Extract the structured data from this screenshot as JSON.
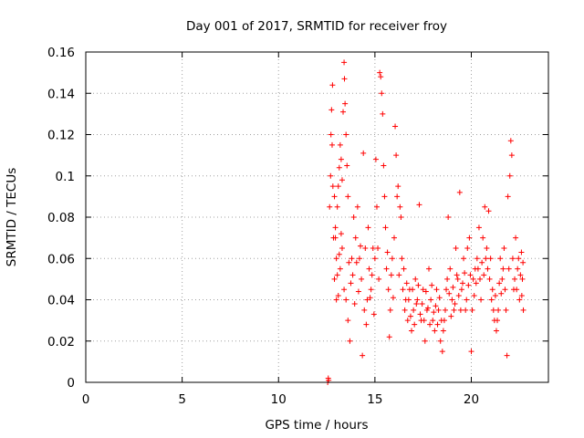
{
  "chart_data": {
    "type": "scatter",
    "title": "Day 001 of 2017, SRMTID for receiver froy",
    "xlabel": "GPS time / hours",
    "ylabel": "SRMTID / TECUs",
    "xlim": [
      0,
      24
    ],
    "ylim": [
      0,
      0.16
    ],
    "xticks": [
      0,
      5,
      10,
      15,
      20
    ],
    "xtick_labels": [
      "0",
      "5",
      "10",
      "15",
      "20"
    ],
    "yticks": [
      0,
      0.02,
      0.04,
      0.06,
      0.08,
      0.1,
      0.12,
      0.14,
      0.16
    ],
    "ytick_labels": [
      "0",
      "0.02",
      "0.04",
      "0.06",
      "0.08",
      "0.1",
      "0.12",
      "0.14",
      "0.16"
    ],
    "grid": true,
    "marker": "+",
    "color": "#ff0000",
    "series": [
      {
        "name": "froy",
        "points": [
          [
            12.55,
            0.0
          ],
          [
            12.6,
            0.001
          ],
          [
            12.58,
            0.002
          ],
          [
            12.65,
            0.085
          ],
          [
            12.7,
            0.1
          ],
          [
            12.72,
            0.12
          ],
          [
            12.75,
            0.132
          ],
          [
            12.8,
            0.144
          ],
          [
            12.78,
            0.115
          ],
          [
            12.82,
            0.095
          ],
          [
            12.85,
            0.07
          ],
          [
            12.9,
            0.09
          ],
          [
            12.95,
            0.075
          ],
          [
            13.0,
            0.06
          ],
          [
            12.9,
            0.05
          ],
          [
            13.05,
            0.085
          ],
          [
            13.1,
            0.095
          ],
          [
            13.15,
            0.104
          ],
          [
            13.2,
            0.115
          ],
          [
            13.25,
            0.108
          ],
          [
            13.3,
            0.098
          ],
          [
            13.35,
            0.131
          ],
          [
            13.4,
            0.155
          ],
          [
            13.42,
            0.147
          ],
          [
            13.45,
            0.135
          ],
          [
            13.5,
            0.12
          ],
          [
            13.55,
            0.105
          ],
          [
            13.6,
            0.09
          ],
          [
            13.3,
            0.065
          ],
          [
            13.4,
            0.045
          ],
          [
            13.5,
            0.04
          ],
          [
            13.6,
            0.03
          ],
          [
            13.7,
            0.02
          ],
          [
            13.2,
            0.055
          ],
          [
            13.0,
            0.04
          ],
          [
            13.1,
            0.042
          ],
          [
            13.8,
            0.06
          ],
          [
            13.9,
            0.08
          ],
          [
            14.0,
            0.07
          ],
          [
            14.1,
            0.085
          ],
          [
            14.2,
            0.06
          ],
          [
            14.3,
            0.05
          ],
          [
            14.4,
            0.111
          ],
          [
            14.5,
            0.065
          ],
          [
            14.6,
            0.04
          ],
          [
            14.7,
            0.055
          ],
          [
            14.8,
            0.045
          ],
          [
            14.9,
            0.065
          ],
          [
            14.35,
            0.013
          ],
          [
            14.45,
            0.035
          ],
          [
            14.55,
            0.028
          ],
          [
            14.65,
            0.075
          ],
          [
            15.0,
            0.06
          ],
          [
            15.05,
            0.108
          ],
          [
            15.1,
            0.085
          ],
          [
            15.15,
            0.065
          ],
          [
            15.2,
            0.05
          ],
          [
            15.25,
            0.15
          ],
          [
            15.3,
            0.148
          ],
          [
            15.35,
            0.14
          ],
          [
            15.4,
            0.13
          ],
          [
            15.45,
            0.105
          ],
          [
            15.5,
            0.09
          ],
          [
            15.55,
            0.075
          ],
          [
            15.6,
            0.055
          ],
          [
            15.7,
            0.045
          ],
          [
            15.8,
            0.035
          ],
          [
            15.75,
            0.022
          ],
          [
            15.9,
            0.06
          ],
          [
            16.0,
            0.07
          ],
          [
            16.05,
            0.124
          ],
          [
            16.1,
            0.11
          ],
          [
            16.15,
            0.09
          ],
          [
            16.2,
            0.095
          ],
          [
            16.3,
            0.085
          ],
          [
            16.35,
            0.08
          ],
          [
            16.4,
            0.06
          ],
          [
            16.45,
            0.045
          ],
          [
            16.5,
            0.055
          ],
          [
            16.6,
            0.04
          ],
          [
            16.7,
            0.03
          ],
          [
            16.8,
            0.045
          ],
          [
            16.9,
            0.025
          ],
          [
            17.0,
            0.035
          ],
          [
            17.1,
            0.05
          ],
          [
            17.2,
            0.04
          ],
          [
            17.3,
            0.086
          ],
          [
            17.4,
            0.03
          ],
          [
            17.5,
            0.045
          ],
          [
            17.6,
            0.02
          ],
          [
            17.7,
            0.035
          ],
          [
            17.8,
            0.055
          ],
          [
            17.9,
            0.04
          ],
          [
            18.0,
            0.03
          ],
          [
            18.1,
            0.025
          ],
          [
            18.2,
            0.045
          ],
          [
            18.3,
            0.035
          ],
          [
            18.4,
            0.02
          ],
          [
            18.5,
            0.015
          ],
          [
            18.6,
            0.03
          ],
          [
            18.7,
            0.045
          ],
          [
            18.8,
            0.08
          ],
          [
            18.9,
            0.055
          ],
          [
            19.0,
            0.04
          ],
          [
            19.1,
            0.035
          ],
          [
            19.2,
            0.065
          ],
          [
            19.3,
            0.05
          ],
          [
            19.4,
            0.092
          ],
          [
            19.5,
            0.045
          ],
          [
            19.6,
            0.06
          ],
          [
            19.7,
            0.035
          ],
          [
            19.8,
            0.065
          ],
          [
            19.9,
            0.07
          ],
          [
            20.0,
            0.015
          ],
          [
            20.1,
            0.05
          ],
          [
            20.2,
            0.055
          ],
          [
            20.3,
            0.06
          ],
          [
            20.4,
            0.075
          ],
          [
            20.5,
            0.04
          ],
          [
            20.6,
            0.07
          ],
          [
            20.7,
            0.085
          ],
          [
            20.8,
            0.065
          ],
          [
            20.9,
            0.083
          ],
          [
            21.0,
            0.06
          ],
          [
            21.1,
            0.045
          ],
          [
            21.2,
            0.03
          ],
          [
            21.3,
            0.025
          ],
          [
            21.4,
            0.035
          ],
          [
            21.5,
            0.06
          ],
          [
            21.6,
            0.05
          ],
          [
            21.7,
            0.065
          ],
          [
            21.8,
            0.035
          ],
          [
            21.85,
            0.013
          ],
          [
            21.9,
            0.09
          ],
          [
            22.0,
            0.1
          ],
          [
            22.05,
            0.117
          ],
          [
            22.1,
            0.11
          ],
          [
            22.15,
            0.06
          ],
          [
            22.2,
            0.045
          ],
          [
            22.3,
            0.07
          ],
          [
            22.4,
            0.055
          ],
          [
            22.5,
            0.04
          ],
          [
            22.6,
            0.063
          ],
          [
            22.65,
            0.05
          ],
          [
            22.7,
            0.035
          ],
          [
            12.95,
            0.07
          ],
          [
            13.05,
            0.052
          ],
          [
            13.15,
            0.062
          ],
          [
            13.25,
            0.072
          ],
          [
            13.65,
            0.058
          ],
          [
            13.75,
            0.048
          ],
          [
            13.85,
            0.052
          ],
          [
            13.95,
            0.038
          ],
          [
            14.05,
            0.058
          ],
          [
            14.15,
            0.044
          ],
          [
            14.25,
            0.066
          ],
          [
            14.75,
            0.041
          ],
          [
            14.85,
            0.052
          ],
          [
            14.95,
            0.033
          ],
          [
            15.65,
            0.063
          ],
          [
            15.85,
            0.052
          ],
          [
            15.95,
            0.041
          ],
          [
            16.25,
            0.052
          ],
          [
            16.55,
            0.035
          ],
          [
            16.65,
            0.048
          ],
          [
            16.75,
            0.04
          ],
          [
            16.85,
            0.032
          ],
          [
            16.95,
            0.045
          ],
          [
            17.05,
            0.028
          ],
          [
            17.15,
            0.038
          ],
          [
            17.25,
            0.047
          ],
          [
            17.35,
            0.033
          ],
          [
            17.45,
            0.038
          ],
          [
            17.55,
            0.03
          ],
          [
            17.65,
            0.044
          ],
          [
            17.75,
            0.036
          ],
          [
            17.85,
            0.028
          ],
          [
            17.95,
            0.047
          ],
          [
            18.05,
            0.034
          ],
          [
            18.15,
            0.037
          ],
          [
            18.25,
            0.028
          ],
          [
            18.35,
            0.041
          ],
          [
            18.45,
            0.03
          ],
          [
            18.55,
            0.025
          ],
          [
            18.65,
            0.035
          ],
          [
            18.75,
            0.05
          ],
          [
            18.85,
            0.043
          ],
          [
            18.95,
            0.032
          ],
          [
            19.05,
            0.046
          ],
          [
            19.15,
            0.038
          ],
          [
            19.25,
            0.052
          ],
          [
            19.35,
            0.042
          ],
          [
            19.45,
            0.035
          ],
          [
            19.55,
            0.048
          ],
          [
            19.65,
            0.053
          ],
          [
            19.75,
            0.04
          ],
          [
            19.85,
            0.047
          ],
          [
            19.95,
            0.052
          ],
          [
            20.05,
            0.035
          ],
          [
            20.15,
            0.042
          ],
          [
            20.25,
            0.048
          ],
          [
            20.35,
            0.055
          ],
          [
            20.45,
            0.05
          ],
          [
            20.55,
            0.058
          ],
          [
            20.65,
            0.052
          ],
          [
            20.75,
            0.06
          ],
          [
            20.85,
            0.055
          ],
          [
            20.95,
            0.05
          ],
          [
            21.05,
            0.04
          ],
          [
            21.15,
            0.035
          ],
          [
            21.25,
            0.042
          ],
          [
            21.35,
            0.03
          ],
          [
            21.45,
            0.048
          ],
          [
            21.55,
            0.043
          ],
          [
            21.65,
            0.055
          ],
          [
            21.75,
            0.045
          ],
          [
            21.95,
            0.055
          ],
          [
            22.25,
            0.05
          ],
          [
            22.35,
            0.045
          ],
          [
            22.45,
            0.06
          ],
          [
            22.55,
            0.052
          ],
          [
            22.62,
            0.042
          ],
          [
            22.68,
            0.058
          ]
        ]
      }
    ]
  }
}
